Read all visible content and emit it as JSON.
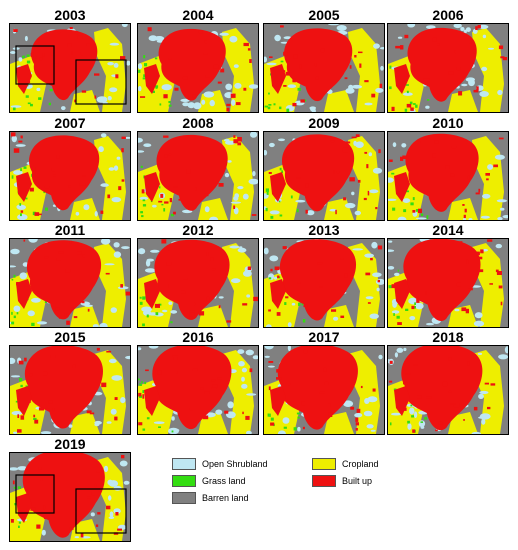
{
  "panels": [
    {
      "year": "2003",
      "variant": 0,
      "highlight": true
    },
    {
      "year": "2004",
      "variant": 1,
      "highlight": false
    },
    {
      "year": "2005",
      "variant": 2,
      "highlight": false
    },
    {
      "year": "2006",
      "variant": 3,
      "highlight": false
    },
    {
      "year": "2007",
      "variant": 4,
      "highlight": false
    },
    {
      "year": "2008",
      "variant": 5,
      "highlight": false
    },
    {
      "year": "2009",
      "variant": 6,
      "highlight": false
    },
    {
      "year": "2010",
      "variant": 7,
      "highlight": false
    },
    {
      "year": "2011",
      "variant": 8,
      "highlight": false
    },
    {
      "year": "2012",
      "variant": 9,
      "highlight": false
    },
    {
      "year": "2013",
      "variant": 10,
      "highlight": false
    },
    {
      "year": "2014",
      "variant": 11,
      "highlight": false
    },
    {
      "year": "2015",
      "variant": 12,
      "highlight": false
    },
    {
      "year": "2016",
      "variant": 13,
      "highlight": false
    },
    {
      "year": "2017",
      "variant": 14,
      "highlight": false
    },
    {
      "year": "2018",
      "variant": 15,
      "highlight": false
    },
    {
      "year": "2019",
      "variant": 16,
      "highlight": true
    }
  ],
  "legend": [
    {
      "label": "Open Shrubland",
      "color": "#bfe7f2"
    },
    {
      "label": "Grass land",
      "color": "#33dd11"
    },
    {
      "label": "Barren land",
      "color": "#808080"
    },
    {
      "label": "Cropland",
      "color": "#eeee00"
    },
    {
      "label": "Built up",
      "color": "#ee1111"
    }
  ],
  "colors": {
    "shrubland": "#bfe7f2",
    "grass": "#33dd11",
    "barren": "#808080",
    "crop": "#eeee00",
    "built": "#ee1111"
  }
}
